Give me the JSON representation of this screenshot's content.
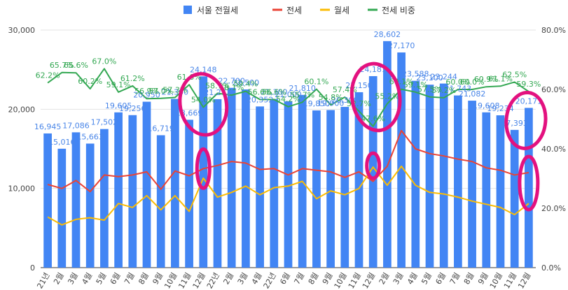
{
  "chart_data": {
    "type": "bar",
    "categories": [
      "21년",
      "2월",
      "3월",
      "4월",
      "5월",
      "6월",
      "7월",
      "8월",
      "9월",
      "10월",
      "11월",
      "12월",
      "22년",
      "2월",
      "3월",
      "4월",
      "22년",
      "6월",
      "7월",
      "8월",
      "9월",
      "10월",
      "11월",
      "12월",
      "2월",
      "3월",
      "4월",
      "5월",
      "6월",
      "7월",
      "8월",
      "9월",
      "10월",
      "11월",
      "12월"
    ],
    "series": [
      {
        "name": "서울 전월세",
        "kind": "bar",
        "axis": "left",
        "color": "#4285f4",
        "values": [
          16945,
          15016,
          17086,
          15663,
          17502,
          19605,
          19256,
          20950,
          16719,
          21300,
          18669,
          24148,
          21273,
          22700,
          22500,
          20352,
          21300,
          21000,
          21810,
          19850,
          19900,
          20300,
          22150,
          24181,
          28602,
          27170,
          23588,
          23100,
          23244,
          21743,
          21082,
          19608,
          19234,
          17393,
          20171
        ]
      },
      {
        "name": "전세",
        "kind": "line",
        "axis": "left",
        "color": "#ea4335",
        "values": [
          10500,
          10000,
          11000,
          9600,
          11700,
          11500,
          11700,
          12100,
          9900,
          12200,
          11600,
          12500,
          12900,
          13400,
          13200,
          12400,
          12500,
          11700,
          12500,
          12300,
          12100,
          11400,
          12100,
          10900,
          12800,
          17300,
          15000,
          14400,
          14100,
          13700,
          13400,
          12600,
          12300,
          11700,
          12000
        ]
      },
      {
        "name": "월세",
        "kind": "line",
        "axis": "left",
        "color": "#fbbc04",
        "values": [
          6400,
          5400,
          6100,
          6300,
          6000,
          8100,
          7600,
          9100,
          7300,
          9100,
          7100,
          11300,
          8900,
          9500,
          10300,
          9200,
          10100,
          10300,
          10900,
          8700,
          9700,
          9200,
          10000,
          12700,
          10400,
          12800,
          10400,
          9500,
          9300,
          8900,
          8400,
          8000,
          7600,
          6700,
          8100
        ]
      },
      {
        "name": "전세 비중",
        "kind": "line",
        "axis": "right",
        "color": "#34a853",
        "values": [
          62.2,
          65.7,
          65.6,
          60.2,
          67.0,
          59.1,
          61.2,
          56.9,
          57.0,
          57.3,
          61.6,
          54.0,
          58.7,
          58.1,
          59.4,
          56.6,
          56.6,
          54.2,
          55.7,
          60.1,
          54.8,
          57.4,
          52.7,
          47.6,
          55.2,
          60.1,
          59.1,
          57.5,
          57.2,
          60.0,
          60.0,
          60.9,
          61.1,
          62.5,
          59.3
        ]
      }
    ],
    "point_labels": {
      "bars": [
        "16,945",
        "15,016",
        "17,086",
        "15,663",
        "17,502",
        "19,605",
        "19,256",
        "20,950",
        "16,719",
        "21,300",
        "18,669",
        "24,148",
        "21,273",
        "22,700",
        "22,500",
        "20,352",
        "21,300",
        "21,000",
        "21,810",
        "19,850",
        "19,900",
        "20,300",
        "22,150",
        "24,181",
        "28,602",
        "27,170",
        "23,588",
        "23,100",
        "23,244",
        "21,743",
        "21,082",
        "19,608",
        "19,234",
        "17,393",
        "20,171"
      ],
      "ratio": [
        "62.2%",
        "65.7%",
        "65.6%",
        "60.2%",
        "67.0%",
        "59.1%",
        "61.2%",
        "56.9%",
        "57.0%",
        "57.3%",
        "61.6%",
        "54.0%",
        "58.7%",
        "58.1%",
        "59.4%",
        "56.6%",
        "56.6%",
        "54.2%",
        "55.7%",
        "60.1%",
        "54.8%",
        "57.4%",
        "52.7%",
        "47.6%",
        "55.2%",
        "60.1%",
        "59.1%",
        "57.5%",
        "57.2%",
        "60.0%",
        "60.0%",
        "60.9%",
        "61.1%",
        "62.5%",
        "59.3%"
      ]
    },
    "yleft": {
      "min": 0,
      "max": 30000,
      "ticks": [
        "0",
        "10,000",
        "20,000",
        "30,000"
      ]
    },
    "yright": {
      "min": 0,
      "max": 80,
      "ticks": [
        "0.0%",
        "20.0%",
        "40.0%",
        "60.0%",
        "80.0%"
      ]
    },
    "grid": true,
    "legend_position": "top-center",
    "annotations": "hand-drawn magenta circles highlighting several points"
  }
}
